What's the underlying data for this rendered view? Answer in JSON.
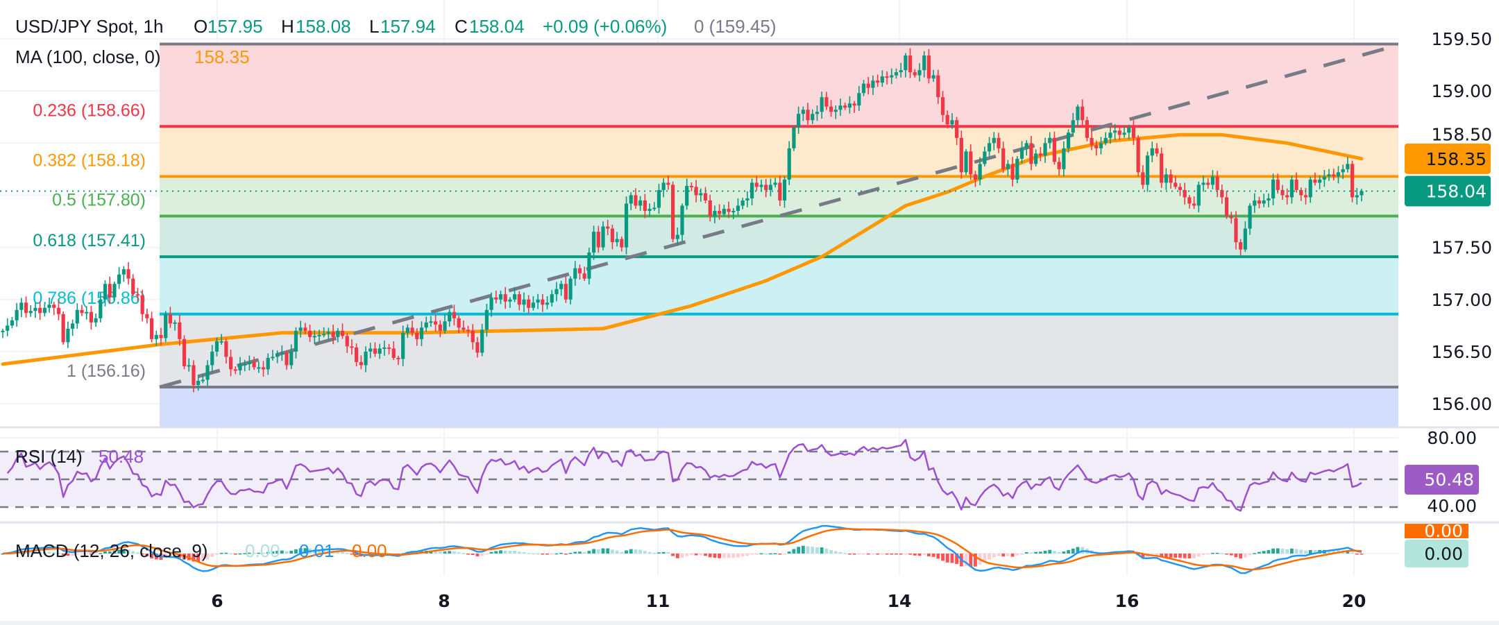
{
  "header": {
    "fib_zero_label": "0 (159.45)",
    "symbol": "USD/JPY Spot, 1h",
    "o_label": "O",
    "open": "157.95",
    "h_label": "H",
    "high": "158.08",
    "l_label": "L",
    "low": "157.94",
    "c_label": "C",
    "close": "158.04",
    "change": "+0.09 (+0.06%)"
  },
  "ma_legend": {
    "label": "MA (100, close, 0)",
    "value": "158.35"
  },
  "rsi_legend": {
    "label": "RSI (14)",
    "value": "50.48"
  },
  "macd_legend": {
    "label": "MACD (12, 26, close, 9)",
    "histogram": "0.00",
    "macd": "0.01",
    "signal": "0.00"
  },
  "colors": {
    "up": "#089981",
    "down": "#f23645",
    "ma": "#ff9800",
    "rsi": "#9c4fd0",
    "macd": "#2196f3",
    "signal": "#ff6d00",
    "trendline": "#787b86"
  },
  "chart_data": {
    "type": "candlestick",
    "timeframe": "1h",
    "x_tick_labels": [
      "6",
      "8",
      "11",
      "14",
      "16",
      "20"
    ],
    "y_tick_labels": [
      "159.50",
      "159.00",
      "158.50",
      "157.50",
      "157.00",
      "156.50",
      "156.00"
    ],
    "ylim": [
      155.75,
      159.85
    ],
    "grid": true,
    "closes": [
      156.7,
      156.75,
      156.8,
      156.9,
      156.97,
      156.87,
      156.89,
      156.92,
      156.87,
      156.92,
      156.95,
      156.92,
      156.86,
      156.59,
      156.72,
      156.77,
      156.9,
      156.87,
      156.88,
      156.78,
      156.82,
      157.0,
      157.15,
      157.02,
      157.15,
      157.24,
      157.29,
      157.2,
      157.05,
      157.04,
      156.86,
      156.82,
      156.62,
      156.66,
      156.63,
      156.86,
      156.77,
      156.78,
      156.62,
      156.36,
      156.37,
      156.18,
      156.22,
      156.23,
      156.37,
      156.5,
      156.6,
      156.6,
      156.45,
      156.33,
      156.32,
      156.38,
      156.38,
      156.4,
      156.35,
      156.35,
      156.33,
      156.44,
      156.45,
      156.48,
      156.49,
      156.37,
      156.5,
      156.7,
      156.73,
      156.7,
      156.64,
      156.65,
      156.66,
      156.67,
      156.69,
      156.64,
      156.7,
      156.65,
      156.55,
      156.54,
      156.4,
      156.37,
      156.5,
      156.53,
      156.48,
      156.53,
      156.54,
      156.53,
      156.44,
      156.43,
      156.68,
      156.73,
      156.68,
      156.62,
      156.73,
      156.78,
      156.79,
      156.76,
      156.7,
      156.79,
      156.88,
      156.82,
      156.73,
      156.71,
      156.7,
      156.59,
      156.49,
      156.71,
      156.9,
      157.02,
      157.0,
      157.05,
      156.98,
      157.0,
      157.05,
      156.95,
      157.0,
      156.92,
      156.97,
      157.0,
      156.95,
      156.97,
      157.05,
      157.1,
      157.15,
      157.0,
      157.2,
      157.3,
      157.25,
      157.2,
      157.45,
      157.65,
      157.5,
      157.7,
      157.68,
      157.55,
      157.58,
      157.5,
      157.92,
      158.0,
      157.9,
      157.95,
      157.85,
      157.87,
      157.88,
      158.05,
      158.12,
      158.1,
      157.58,
      157.62,
      157.9,
      158.09,
      158.08,
      158.0,
      158.02,
      157.95,
      157.8,
      157.85,
      157.82,
      157.87,
      157.84,
      157.85,
      157.9,
      157.95,
      157.97,
      158.12,
      158.08,
      158.1,
      158.05,
      158.1,
      158.12,
      157.95,
      158.15,
      158.45,
      158.65,
      158.78,
      158.82,
      158.72,
      158.78,
      158.8,
      158.94,
      158.85,
      158.8,
      158.82,
      158.86,
      158.84,
      158.88,
      158.86,
      158.98,
      159.07,
      159.03,
      159.1,
      159.08,
      159.14,
      159.13,
      159.15,
      159.18,
      159.2,
      159.34,
      159.18,
      159.15,
      159.2,
      159.34,
      159.12,
      159.15,
      158.94,
      158.77,
      158.68,
      158.72,
      158.55,
      158.22,
      158.42,
      158.2,
      158.15,
      158.3,
      158.42,
      158.5,
      158.55,
      158.45,
      158.25,
      158.3,
      158.15,
      158.35,
      158.45,
      158.5,
      158.3,
      158.4,
      158.38,
      158.5,
      158.55,
      158.32,
      158.25,
      158.45,
      158.6,
      158.72,
      158.85,
      158.72,
      158.55,
      158.48,
      158.45,
      158.5,
      158.55,
      158.6,
      158.62,
      158.58,
      158.6,
      158.65,
      158.55,
      158.22,
      158.1,
      158.38,
      158.45,
      158.4,
      158.12,
      158.2,
      158.12,
      158.08,
      158.05,
      157.98,
      157.92,
      157.9,
      158.1,
      158.12,
      158.1,
      158.18,
      158.05,
      157.98,
      157.8,
      157.78,
      157.55,
      157.48,
      157.68,
      157.9,
      157.95,
      157.92,
      157.95,
      157.97,
      158.15,
      158.05,
      158.0,
      157.98,
      158.15,
      158.05,
      158.0,
      157.98,
      158.15,
      158.12,
      158.15,
      158.18,
      158.2,
      158.18,
      158.22,
      158.25,
      158.3,
      157.98,
      158.0,
      158.04
    ],
    "ma100": [
      [
        0,
        156.38
      ],
      [
        34,
        156.57
      ],
      [
        60,
        156.68
      ],
      [
        89,
        156.68
      ],
      [
        129,
        156.72
      ],
      [
        148,
        156.94
      ],
      [
        164,
        157.18
      ],
      [
        176,
        157.41
      ],
      [
        194,
        157.9
      ],
      [
        203,
        158.03
      ],
      [
        211,
        158.18
      ],
      [
        223,
        158.38
      ],
      [
        238,
        158.52
      ],
      [
        253,
        158.58
      ],
      [
        262,
        158.58
      ],
      [
        276,
        158.5
      ],
      [
        292,
        158.35
      ]
    ],
    "trendline": {
      "from_price": 156.16,
      "to_price": 159.44,
      "style": "dashed"
    },
    "fibonacci": [
      {
        "level": "0",
        "price": 159.45,
        "color": "#787b86",
        "fill": "#fad8db",
        "label": "0 (159.45)"
      },
      {
        "level": "0.236",
        "price": 158.66,
        "color": "#f23645",
        "fill": "#fde9cc",
        "label": "0.236 (158.66)"
      },
      {
        "level": "0.382",
        "price": 158.18,
        "color": "#ff9800",
        "fill": "#dcefdc",
        "label": "0.382 (158.18)"
      },
      {
        "level": "0.5",
        "price": 157.8,
        "color": "#4caf50",
        "fill": "#d1ebe4",
        "label": "0.5 (157.80)"
      },
      {
        "level": "0.618",
        "price": 157.41,
        "color": "#089981",
        "fill": "#ccf0f3",
        "label": "0.618 (157.41)"
      },
      {
        "level": "0.786",
        "price": 156.86,
        "color": "#00bcd4",
        "fill": "#e4e5e8",
        "label": "0.786 (156.86)"
      },
      {
        "level": "1",
        "price": 156.16,
        "color": "#787b86",
        "fill": "#d3defc",
        "label": "1 (156.16)"
      }
    ],
    "last_price": 158.04,
    "price_badges": [
      {
        "value": "158.35",
        "color": "#ff9800",
        "text_color": "#131722",
        "price": 158.35
      },
      {
        "value": "158.04",
        "color": "#089981",
        "text_color": "#ffffff",
        "price": 158.04
      }
    ],
    "rsi": {
      "period": 14,
      "levels": [
        70,
        50,
        30
      ],
      "tick_labels": [
        "80.00",
        "40.00"
      ],
      "badge": "50.48"
    },
    "macd": {
      "fast": 12,
      "slow": 26,
      "signal": 9,
      "badges": [
        "0.00",
        "0.00"
      ]
    }
  }
}
